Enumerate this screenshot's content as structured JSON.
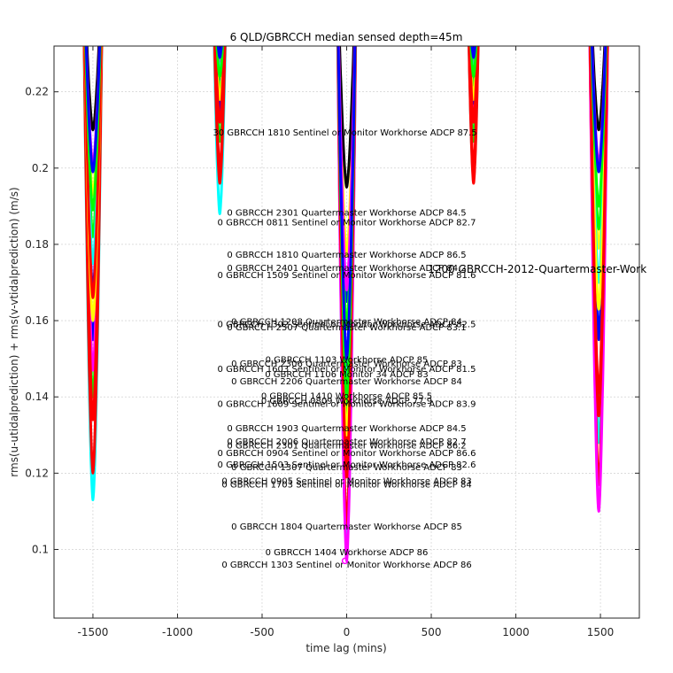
{
  "chart_data": {
    "type": "line",
    "title": "6 QLD/GBRCCH median sensed depth=45m",
    "xlabel": "time lag (mins)",
    "ylabel": "rms(u-utidalprediction) + rms(v-vtidalprediction) (m/s)",
    "xlim": [
      -1730,
      1730
    ],
    "ylim": [
      0.082,
      0.232
    ],
    "xticks": [
      -1500,
      -1000,
      -500,
      0,
      500,
      1000,
      1500
    ],
    "yticks": [
      0.1,
      0.12,
      0.14,
      0.16,
      0.18,
      0.2,
      0.22
    ],
    "grid": true,
    "curve_groups": [
      {
        "center": -1500,
        "half_width": 60
      },
      {
        "center": -750,
        "half_width": 45
      },
      {
        "center": 0,
        "half_width": 60
      },
      {
        "center": 750,
        "half_width": 40
      },
      {
        "center": 1490,
        "half_width": 60
      }
    ],
    "series": [
      {
        "color": "#00ffff",
        "minima": [
          0.113,
          0.188,
          0.099,
          0.197,
          0.128
        ]
      },
      {
        "color": "#ff0000",
        "minima": [
          0.12,
          0.196,
          0.106,
          0.196,
          0.117
        ]
      },
      {
        "color": "#0000ff",
        "minima": [
          0.155,
          0.222,
          0.148,
          0.222,
          0.155
        ]
      },
      {
        "color": "#00ff00",
        "minima": [
          0.14,
          0.207,
          0.134,
          0.207,
          0.137
        ]
      },
      {
        "color": "#ff00ff",
        "minima": [
          0.147,
          0.214,
          0.097,
          0.214,
          0.11
        ]
      },
      {
        "color": "#ffff00",
        "minima": [
          0.193,
          0.225,
          0.177,
          0.225,
          0.179
        ]
      },
      {
        "color": "#000000",
        "minima": [
          0.21,
          0.23,
          0.195,
          0.23,
          0.21
        ]
      },
      {
        "color": "#ff0000",
        "minima": [
          0.134,
          0.2,
          0.124,
          0.2,
          0.135
        ]
      },
      {
        "color": "#0000ff",
        "minima": [
          0.168,
          0.215,
          0.165,
          0.217,
          0.157
        ]
      },
      {
        "color": "#00ff00",
        "minima": [
          0.182,
          0.22,
          0.158,
          0.22,
          0.184
        ]
      },
      {
        "color": "#ff00ff",
        "minima": [
          0.201,
          0.228,
          0.168,
          0.228,
          0.201
        ]
      },
      {
        "color": "#00ffff",
        "minima": [
          0.175,
          0.225,
          0.145,
          0.225,
          0.17
        ]
      },
      {
        "color": "#ffff00",
        "minima": [
          0.16,
          0.218,
          0.13,
          0.218,
          0.163
        ]
      },
      {
        "color": "#ff0000",
        "minima": [
          0.166,
          0.212,
          0.119,
          0.212,
          0.141
        ]
      },
      {
        "color": "#00ff00",
        "minima": [
          0.189,
          0.224,
          0.14,
          0.224,
          0.19
        ]
      },
      {
        "color": "#0000ff",
        "minima": [
          0.199,
          0.229,
          0.15,
          0.229,
          0.199
        ]
      }
    ],
    "annotations": [
      {
        "text": "30 GBRCCH 1810 Sentinel or Monitor Workhorse ADCP 87.5",
        "x": -10,
        "y": 0.2085,
        "size": "small"
      },
      {
        "text": "0 GBRCCH 2301 Quartermaster Workhorse ADCP 84.5",
        "x": 0,
        "y": 0.1875,
        "size": "small"
      },
      {
        "text": "0 GBRCCH 0811 Sentinel or Monitor Workhorse ADCP 82.7",
        "x": 0,
        "y": 0.185,
        "size": "small"
      },
      {
        "text": "0 GBRCCH 1810 Quartermaster Workhorse ADCP 86.5",
        "x": 0,
        "y": 0.1765,
        "size": "small"
      },
      {
        "text": "0 GBRCCH 2401 Quartermaster Workhorse ADCP 84.2",
        "x": 0,
        "y": 0.173,
        "size": "small"
      },
      {
        "text": "0 GBRCCH 1509 Sentinel or Monitor Workhorse ADCP 81.6",
        "x": 0,
        "y": 0.1712,
        "size": "small"
      },
      {
        "text": "1200 GBRCCH-2012-Quartermaster-Work",
        "x": 480,
        "y": 0.1726,
        "size": "big"
      },
      {
        "text": "0 GBRCCH 1208 Quartermaster Workhorse ADCP 84",
        "x": 0,
        "y": 0.159,
        "size": "small"
      },
      {
        "text": "0 GBRCCH 1302 Sentinel or Monitor Workhorse ADCP 82.5",
        "x": 0,
        "y": 0.1583,
        "size": "small"
      },
      {
        "text": "0 GBRCCH 2507 Quartermaster Workhorse ADCP 83.1",
        "x": 0,
        "y": 0.1575,
        "size": "small"
      },
      {
        "text": "0 GBRCCH 1103 Workhorse ADCP 85",
        "x": 0,
        "y": 0.149,
        "size": "small"
      },
      {
        "text": "0 GBRCCH 2306 Quartermaster Workhorse ADCP 83",
        "x": 0,
        "y": 0.148,
        "size": "small"
      },
      {
        "text": "0 GBRCCH 1603 Sentinel or Monitor Workhorse ADCP 81.5",
        "x": 0,
        "y": 0.1465,
        "size": "small"
      },
      {
        "text": "0 GBRCCH 1106 Monitor 34 ADCP 83",
        "x": 0,
        "y": 0.1452,
        "size": "small"
      },
      {
        "text": "0 GBRCCH 2206 Quartermaster Workhorse ADCP 84",
        "x": 0,
        "y": 0.1433,
        "size": "small"
      },
      {
        "text": "0 GBRCCH 1410 Workhorse ADCP 85.5",
        "x": 0,
        "y": 0.1395,
        "size": "small"
      },
      {
        "text": "0 GBRCCH 0809 Workhorse ADCP 77.9",
        "x": 0,
        "y": 0.1382,
        "size": "small"
      },
      {
        "text": "0 GBRCCH 1609 Sentinel or Monitor Workhorse ADCP 83.9",
        "x": 0,
        "y": 0.1374,
        "size": "small"
      },
      {
        "text": "0 GBRCCH 1903 Quartermaster Workhorse ADCP 84.5",
        "x": 0,
        "y": 0.131,
        "size": "small"
      },
      {
        "text": "0 GBRCCH 2006 Quartermaster Workhorse ADCP 82.7",
        "x": 0,
        "y": 0.1275,
        "size": "small"
      },
      {
        "text": "0 GBRCCH 2301 Quartermaster Workhorse ADCP 86.2",
        "x": 0,
        "y": 0.1265,
        "size": "small"
      },
      {
        "text": "0 GBRCCH 0904 Sentinel or Monitor Workhorse ADCP 86.6",
        "x": 0,
        "y": 0.1245,
        "size": "small"
      },
      {
        "text": "0 GBRCCH 1503 Sentinel or Monitor Workhorse ADCP 82.6",
        "x": 0,
        "y": 0.1215,
        "size": "small"
      },
      {
        "text": "0 GBRCCH 1307 Quartermaster Workhorse ADCP 83",
        "x": 0,
        "y": 0.1208,
        "size": "small"
      },
      {
        "text": "0 GBRCCH 0905 Sentinel or Monitor Workhorse ADCP 83",
        "x": 0,
        "y": 0.1172,
        "size": "small"
      },
      {
        "text": "0 GBRCCH 1703 Sentinel or Monitor Workhorse ADCP 84",
        "x": 0,
        "y": 0.1162,
        "size": "small"
      },
      {
        "text": "0 GBRCCH 1804 Quartermaster Workhorse ADCP 85",
        "x": 0,
        "y": 0.1052,
        "size": "small"
      },
      {
        "text": "0 GBRCCH 1404 Workhorse ADCP 86",
        "x": 0,
        "y": 0.0985,
        "size": "small"
      },
      {
        "text": "0 GBRCCH 1303 Sentinel or Monitor Workhorse ADCP 86",
        "x": 0,
        "y": 0.0952,
        "size": "small"
      }
    ],
    "markers": [
      {
        "x": -10,
        "y": 0.097,
        "color": "#ff00ff"
      }
    ]
  }
}
